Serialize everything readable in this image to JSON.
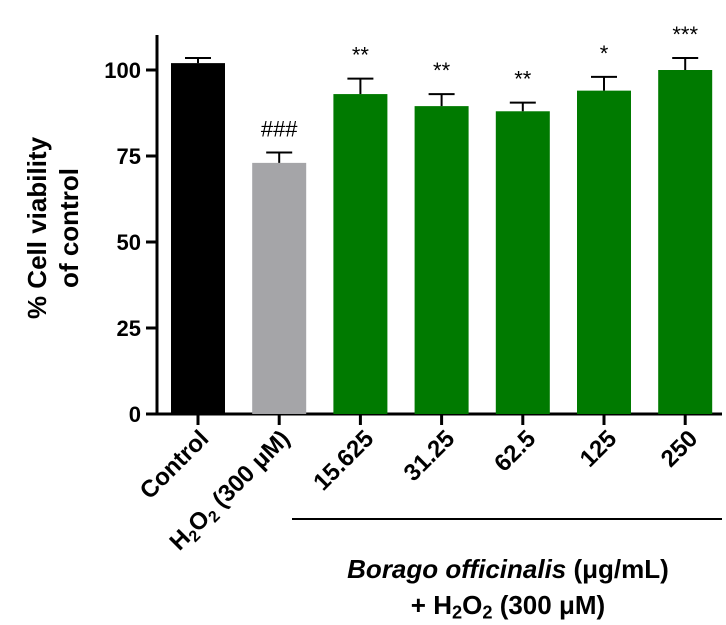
{
  "chart_data": {
    "type": "bar",
    "ylabel_line1": "% Cell viability",
    "ylabel_line2": "of control",
    "ylim": [
      0,
      110
    ],
    "yticks": [
      "0",
      "25",
      "50",
      "75",
      "100"
    ],
    "categories": [
      "Control",
      "H2O2 (300 μM)",
      "15.625",
      "31.25",
      "62.5",
      "125",
      "250"
    ],
    "values": [
      102,
      73,
      93,
      89.5,
      88,
      94,
      100
    ],
    "errors": [
      1.5,
      3,
      4.5,
      3.5,
      2.5,
      4,
      3.5
    ],
    "significance": [
      "",
      "###",
      "**",
      "**",
      "**",
      "*",
      "***"
    ],
    "colors": [
      "#000000",
      "#a5a5a8",
      "#007a00",
      "#007a00",
      "#007a00",
      "#007a00",
      "#007a00"
    ],
    "category_label_parts": {
      "h2o2_H": "H",
      "h2o2_2a": "2",
      "h2o2_O": "O",
      "h2o2_2b": "2",
      "h2o2_rest": " (300 μM)"
    },
    "group_label": {
      "line1_italic": "Borago officinalis",
      "line1_rest": " (μg/mL)",
      "line2_prefix": "+ H",
      "line2_sub1": "2",
      "line2_mid": "O",
      "line2_sub2": "2",
      "line2_rest": " (300 μM)"
    }
  }
}
